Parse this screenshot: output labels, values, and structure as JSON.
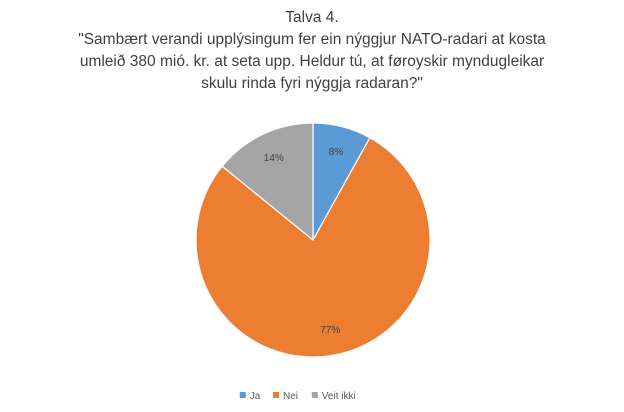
{
  "chart_data": {
    "type": "pie",
    "title": "Talva 4.",
    "subtitle_lines": [
      "\"Sambært verandi upplýsingum fer ein nýggjur NATO-radari at kosta",
      "umleið 380 mió. kr. at seta upp. Heldur tú, at føroyskir myndugleikar",
      "skulu rinda fyri nýggja radaran?\""
    ],
    "categories": [
      "Ja",
      "Nei",
      "Veit ikki"
    ],
    "values": [
      8,
      77,
      14
    ],
    "value_labels": [
      "8%",
      "77%",
      "14%"
    ],
    "colors": [
      "#5B9BD5",
      "#ED7D31",
      "#A5A5A5"
    ],
    "legend_position": "bottom",
    "start_angle": "top, clockwise"
  }
}
